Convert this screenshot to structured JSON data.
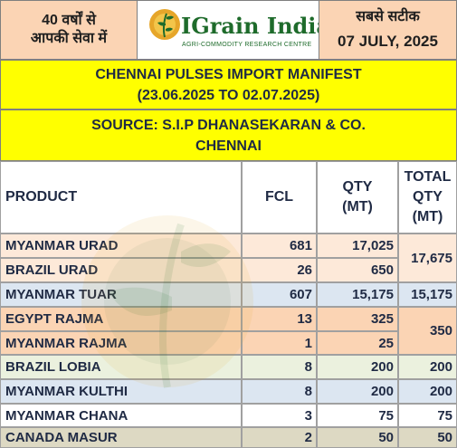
{
  "header": {
    "left_line1": "40 वर्षों से",
    "left_line2": "आपकी सेवा में",
    "logo_name": "IGrain India",
    "logo_tagline": "AGRI-COMMODITY RESEARCH CENTRE",
    "right_line1": "सबसे सटीक",
    "date": "07 JULY, 2025"
  },
  "title": {
    "line1": "CHENNAI PULSES IMPORT MANIFEST",
    "line2": "(23.06.2025 TO 02.07.2025)"
  },
  "source": {
    "line1": "SOURCE: S.I.P DHANASEKARAN & CO.",
    "line2": "CHENNAI"
  },
  "table": {
    "headers": {
      "product": "PRODUCT",
      "fcl": "FCL",
      "qty_line1": "QTY",
      "qty_line2": "(MT)",
      "total_line1": "TOTAL",
      "total_line2": "QTY",
      "total_line3": "(MT)"
    },
    "rows": [
      {
        "product": "MYANMAR URAD",
        "fcl": "681",
        "qty": "17,025",
        "bg": "#fde9d9"
      },
      {
        "product": "BRAZIL URAD",
        "fcl": "26",
        "qty": "650",
        "bg": "#fde9d9"
      },
      {
        "product": "MYANMAR TUAR",
        "fcl": "607",
        "qty": "15,175",
        "bg": "#dce6f1"
      },
      {
        "product": "EGYPT RAJMA",
        "fcl": "13",
        "qty": "325",
        "bg": "#fbd4b4"
      },
      {
        "product": "MYANMAR RAJMA",
        "fcl": "1",
        "qty": "25",
        "bg": "#fbd4b4"
      },
      {
        "product": "BRAZIL LOBIA",
        "fcl": "8",
        "qty": "200",
        "bg": "#ebf1de"
      },
      {
        "product": "MYANMAR KULTHI",
        "fcl": "8",
        "qty": "200",
        "bg": "#dce6f1"
      },
      {
        "product": "MYANMAR CHANA",
        "fcl": "3",
        "qty": "75",
        "bg": "#ffffff"
      },
      {
        "product": "CANADA MASUR",
        "fcl": "2",
        "qty": "50",
        "bg": "#ddd9c3"
      }
    ],
    "totals": [
      {
        "value": "17,675",
        "bg": "#fde9d9"
      },
      {
        "value": "15,175",
        "bg": "#dce6f1"
      },
      {
        "value": "350",
        "bg": "#fbd4b4"
      },
      {
        "value": "200",
        "bg": "#ebf1de"
      },
      {
        "value": "200",
        "bg": "#dce6f1"
      },
      {
        "value": "75",
        "bg": "#ffffff"
      },
      {
        "value": "50",
        "bg": "#ddd9c3"
      }
    ]
  },
  "colors": {
    "header_peach": "#fbd4b4",
    "title_yellow": "#ffff00",
    "logo_green": "#1e6b2b",
    "logo_gold": "#e0a020"
  }
}
